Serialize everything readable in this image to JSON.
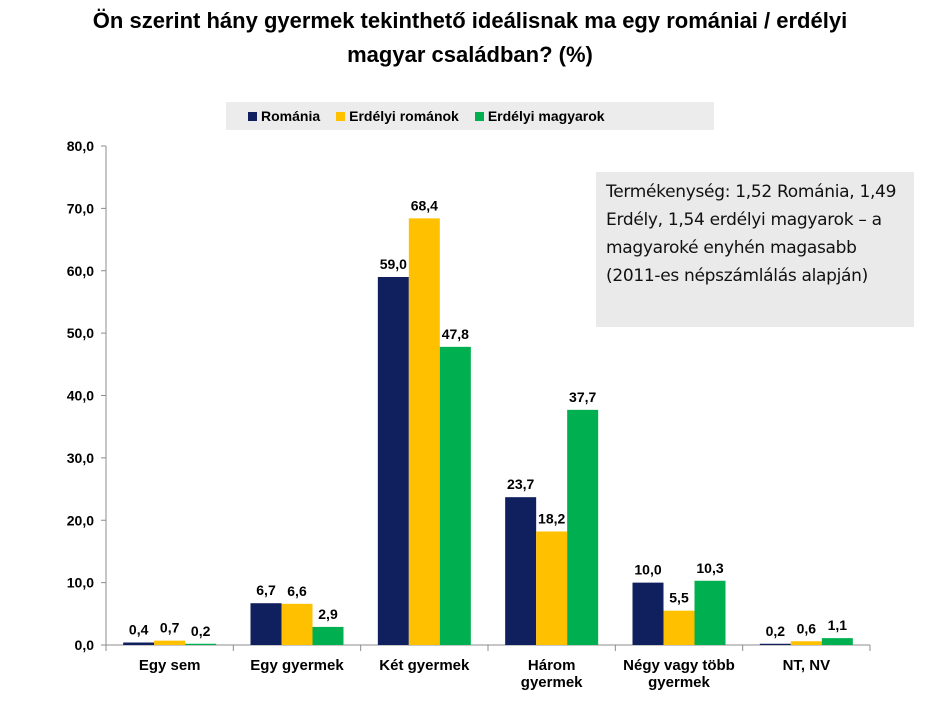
{
  "chart_data": {
    "type": "bar",
    "title_lines": [
      "Ön szerint hány gyermek tekinthető ideálisnak ma egy romániai / erdélyi",
      "magyar családban? (%)"
    ],
    "categories": [
      [
        "Egy sem"
      ],
      [
        "Egy gyermek"
      ],
      [
        "Két gyermek"
      ],
      [
        "Három",
        "gyermek"
      ],
      [
        "Négy vagy több",
        "gyermek"
      ],
      [
        "NT, NV"
      ]
    ],
    "series": [
      {
        "name": "Románia",
        "color": "#10205e",
        "values": [
          0.4,
          6.7,
          59.0,
          23.7,
          10.0,
          0.2
        ]
      },
      {
        "name": "Erdélyi románok",
        "color": "#ffc000",
        "values": [
          0.7,
          6.6,
          68.4,
          18.2,
          5.5,
          0.6
        ]
      },
      {
        "name": "Erdélyi magyarok",
        "color": "#00b050",
        "values": [
          0.2,
          2.9,
          47.8,
          37.7,
          10.3,
          1.1
        ]
      }
    ],
    "ylim": [
      0,
      80
    ],
    "yticks": [
      0,
      10,
      20,
      30,
      40,
      50,
      60,
      70,
      80
    ],
    "legend_position": "top",
    "grid": false,
    "annotation": "Termékenység: 1,52 Románia, 1,49 Erdély, 1,54 erdélyi magyarok – a magyaroké enyhén magasabb (2011-es népszámlálás alapján)"
  }
}
